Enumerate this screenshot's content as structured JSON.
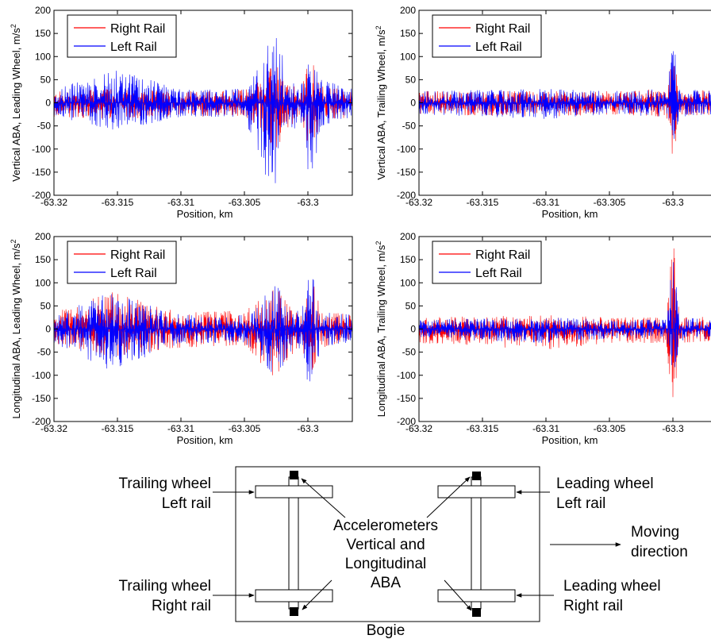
{
  "chart_data": [
    {
      "type": "line",
      "xlabel": "Position, km",
      "ylabel": "Vertical ABA, Leading Wheel, m/s",
      "ylabel_sup": "2",
      "xlim": [
        -63.32,
        -63.2965
      ],
      "ylim": [
        -200,
        200
      ],
      "x_ticks": [
        -63.32,
        -63.315,
        -63.31,
        -63.305,
        -63.3
      ],
      "x_tick_labels": [
        "-63.32",
        "-63.315",
        "-63.31",
        "-63.305",
        "-63.3"
      ],
      "y_ticks": [
        -200,
        -150,
        -100,
        -50,
        0,
        50,
        100,
        150,
        200
      ],
      "y_tick_labels": [
        "-200",
        "-150",
        "-100",
        "-50",
        "0",
        "50",
        "100",
        "150",
        "200"
      ],
      "legend_position": "top-left",
      "series": [
        {
          "name": "Right Rail",
          "color": "#ff0000",
          "envelope": {
            "x": [
              -63.32,
              -63.315,
              -63.31,
              -63.305,
              -63.3035,
              -63.3025,
              -63.3015,
              -63.3005,
              -63.2998,
              -63.299,
              -63.2965
            ],
            "max": [
              25,
              30,
              25,
              30,
              60,
              90,
              40,
              30,
              120,
              40,
              25
            ],
            "min": [
              -30,
              -35,
              -30,
              -30,
              -70,
              -100,
              -50,
              -40,
              -110,
              -40,
              -30
            ]
          }
        },
        {
          "name": "Left Rail",
          "color": "#0000ff",
          "envelope": {
            "x": [
              -63.32,
              -63.315,
              -63.31,
              -63.305,
              -63.3035,
              -63.3025,
              -63.3015,
              -63.3005,
              -63.2998,
              -63.299,
              -63.2965
            ],
            "max": [
              30,
              70,
              30,
              30,
              100,
              170,
              50,
              40,
              110,
              50,
              30
            ],
            "min": [
              -30,
              -60,
              -30,
              -30,
              -150,
              -185,
              -60,
              -50,
              -195,
              -50,
              -30
            ]
          }
        }
      ]
    },
    {
      "type": "line",
      "xlabel": "Position, km",
      "ylabel": "Vertical ABA, Trailing Wheel, m/s",
      "ylabel_sup": "2",
      "xlim": [
        -63.32,
        -63.2965
      ],
      "ylim": [
        -200,
        200
      ],
      "x_ticks": [
        -63.32,
        -63.315,
        -63.31,
        -63.305,
        -63.3
      ],
      "x_tick_labels": [
        "-63.32",
        "-63.315",
        "-63.31",
        "-63.305",
        "-63.3"
      ],
      "y_ticks": [
        -200,
        -150,
        -100,
        -50,
        0,
        50,
        100,
        150,
        200
      ],
      "y_tick_labels": [
        "-200",
        "-150",
        "-100",
        "-50",
        "0",
        "50",
        "100",
        "150",
        "200"
      ],
      "legend_position": "top-left",
      "series": [
        {
          "name": "Right Rail",
          "color": "#ff0000",
          "envelope": {
            "x": [
              -63.32,
              -63.31,
              -63.305,
              -63.3005,
              -63.3,
              -63.2995,
              -63.2965
            ],
            "max": [
              25,
              25,
              25,
              30,
              120,
              30,
              25
            ],
            "min": [
              -25,
              -30,
              -25,
              -30,
              -120,
              -30,
              -25
            ]
          }
        },
        {
          "name": "Left Rail",
          "color": "#0000ff",
          "envelope": {
            "x": [
              -63.32,
              -63.31,
              -63.305,
              -63.3005,
              -63.3,
              -63.2995,
              -63.2965
            ],
            "max": [
              25,
              30,
              25,
              30,
              150,
              30,
              25
            ],
            "min": [
              -25,
              -35,
              -25,
              -30,
              -110,
              -30,
              -25
            ]
          }
        }
      ]
    },
    {
      "type": "line",
      "xlabel": "Position, km",
      "ylabel": "Longitudinal ABA, Leading Wheel, m/s",
      "ylabel_sup": "2",
      "xlim": [
        -63.32,
        -63.2965
      ],
      "ylim": [
        -200,
        200
      ],
      "x_ticks": [
        -63.32,
        -63.315,
        -63.31,
        -63.305,
        -63.3
      ],
      "x_tick_labels": [
        "-63.32",
        "-63.315",
        "-63.31",
        "-63.305",
        "-63.3"
      ],
      "y_ticks": [
        -200,
        -150,
        -100,
        -50,
        0,
        50,
        100,
        150,
        200
      ],
      "y_tick_labels": [
        "-200",
        "-150",
        "-100",
        "-50",
        "0",
        "50",
        "100",
        "150",
        "200"
      ],
      "legend_position": "top-left",
      "series": [
        {
          "name": "Right Rail",
          "color": "#ff0000",
          "envelope": {
            "x": [
              -63.32,
              -63.3155,
              -63.31,
              -63.305,
              -63.3025,
              -63.3015,
              -63.3005,
              -63.2998,
              -63.299,
              -63.2965
            ],
            "max": [
              35,
              80,
              35,
              40,
              90,
              50,
              40,
              130,
              40,
              30
            ],
            "min": [
              -35,
              -60,
              -40,
              -35,
              -110,
              -60,
              -40,
              -100,
              -40,
              -30
            ]
          }
        },
        {
          "name": "Left Rail",
          "color": "#0000ff",
          "envelope": {
            "x": [
              -63.32,
              -63.3155,
              -63.31,
              -63.305,
              -63.3025,
              -63.3015,
              -63.3005,
              -63.2998,
              -63.299,
              -63.2965
            ],
            "max": [
              30,
              80,
              30,
              30,
              100,
              40,
              40,
              155,
              40,
              30
            ],
            "min": [
              -30,
              -90,
              -30,
              -30,
              -110,
              -50,
              -40,
              -165,
              -40,
              -30
            ]
          }
        }
      ]
    },
    {
      "type": "line",
      "xlabel": "Position, km",
      "ylabel": "Longitudinal ABA, Trailing Wheel, m/s",
      "ylabel_sup": "2",
      "xlim": [
        -63.32,
        -63.2965
      ],
      "ylim": [
        -200,
        200
      ],
      "x_ticks": [
        -63.32,
        -63.315,
        -63.31,
        -63.305,
        -63.3
      ],
      "x_tick_labels": [
        "-63.32",
        "-63.315",
        "-63.31",
        "-63.305",
        "-63.3"
      ],
      "y_ticks": [
        -200,
        -150,
        -100,
        -50,
        0,
        50,
        100,
        150,
        200
      ],
      "y_tick_labels": [
        "-200",
        "-150",
        "-100",
        "-50",
        "0",
        "50",
        "100",
        "150",
        "200"
      ],
      "legend_position": "top-left",
      "series": [
        {
          "name": "Right Rail",
          "color": "#ff0000",
          "envelope": {
            "x": [
              -63.32,
              -63.31,
              -63.305,
              -63.3005,
              -63.3,
              -63.2995,
              -63.2965
            ],
            "max": [
              25,
              30,
              25,
              25,
              200,
              30,
              25
            ],
            "min": [
              -30,
              -45,
              -30,
              -30,
              -200,
              -30,
              -25
            ]
          }
        },
        {
          "name": "Left Rail",
          "color": "#0000ff",
          "envelope": {
            "x": [
              -63.32,
              -63.31,
              -63.305,
              -63.3005,
              -63.3,
              -63.2995,
              -63.2965
            ],
            "max": [
              20,
              25,
              20,
              20,
              200,
              25,
              20
            ],
            "min": [
              -20,
              -30,
              -20,
              -20,
              -140,
              -25,
              -20
            ]
          }
        }
      ]
    }
  ],
  "diagram": {
    "trailing_left": [
      "Trailing wheel",
      "Left rail"
    ],
    "trailing_right": [
      "Trailing wheel",
      "Right rail"
    ],
    "leading_left": [
      "Leading wheel",
      "Left rail"
    ],
    "leading_right": [
      "Leading wheel",
      "Right rail"
    ],
    "accelerometers": [
      "Accelerometers",
      "Vertical and",
      "Longitudinal",
      "ABA"
    ],
    "moving_direction": [
      "Moving",
      "direction"
    ],
    "bogie": "Bogie"
  }
}
